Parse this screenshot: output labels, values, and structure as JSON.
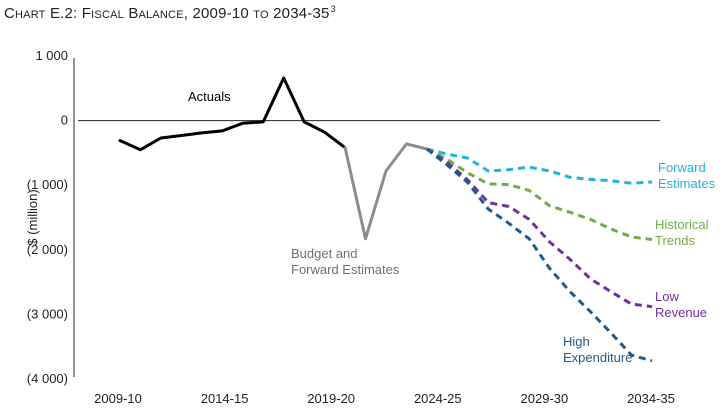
{
  "title": {
    "main": "Chart E.2: Fiscal Balance, 2009-10 to 2034-35",
    "footnote": "3"
  },
  "chart_data": {
    "type": "line",
    "title": "Chart E.2: Fiscal Balance, 2009-10 to 2034-35",
    "xlabel": "",
    "ylabel": "$ (million)",
    "x_tick_labels": [
      "2009-10",
      "2014-15",
      "2019-20",
      "2024-25",
      "2029-30",
      "2034-35"
    ],
    "y_ticks": [
      {
        "value": 1000,
        "label": "1 000"
      },
      {
        "value": 0,
        "label": "0"
      },
      {
        "value": -1000,
        "label": "(1 000)"
      },
      {
        "value": -2000,
        "label": "(2 000)"
      },
      {
        "value": -3000,
        "label": "(3 000)"
      },
      {
        "value": -4000,
        "label": "(4 000)"
      }
    ],
    "ylim": [
      -4000,
      1000
    ],
    "xlim": [
      2009,
      2035
    ],
    "grid": false,
    "zero_line": true,
    "series": [
      {
        "name": "Actuals",
        "label_lines": [
          "Actuals"
        ],
        "color": "#000000",
        "dash": "solid",
        "x": [
          2009,
          2010,
          2011,
          2012,
          2013,
          2014,
          2015,
          2016,
          2017,
          2018,
          2019,
          2020
        ],
        "values": [
          -310,
          -450,
          -270,
          -230,
          -190,
          -160,
          -40,
          -20,
          660,
          -20,
          -180,
          -420
        ]
      },
      {
        "name": "Budget and Forward Estimates",
        "label_lines": [
          "Budget and",
          "Forward Estimates"
        ],
        "color": "#8c8c8c",
        "dash": "solid",
        "x": [
          2020,
          2021,
          2022,
          2023,
          2024
        ],
        "values": [
          -420,
          -1830,
          -780,
          -360,
          -440
        ]
      },
      {
        "name": "Forward Estimates",
        "label_lines": [
          "Forward",
          "Estimates"
        ],
        "color": "#22b3dd",
        "dash": "dashed",
        "x": [
          2024,
          2025,
          2026,
          2027,
          2028,
          2029,
          2030,
          2031,
          2032,
          2033,
          2034,
          2035
        ],
        "values": [
          -440,
          -520,
          -580,
          -780,
          -760,
          -720,
          -780,
          -880,
          -910,
          -930,
          -970,
          -950
        ]
      },
      {
        "name": "Historical Trends",
        "label_lines": [
          "Historical",
          "Trends"
        ],
        "color": "#70ad47",
        "dash": "dashed",
        "x": [
          2024,
          2025,
          2026,
          2027,
          2028,
          2029,
          2030,
          2031,
          2032,
          2033,
          2034,
          2035
        ],
        "values": [
          -440,
          -600,
          -810,
          -980,
          -990,
          -1080,
          -1320,
          -1420,
          -1530,
          -1680,
          -1800,
          -1840
        ]
      },
      {
        "name": "Low Revenue",
        "label_lines": [
          "Low",
          "Revenue"
        ],
        "color": "#7030a0",
        "dash": "dashed",
        "x": [
          2024,
          2025,
          2026,
          2027,
          2028,
          2029,
          2030,
          2031,
          2032,
          2033,
          2034,
          2035
        ],
        "values": [
          -440,
          -650,
          -920,
          -1270,
          -1330,
          -1530,
          -1880,
          -2150,
          -2450,
          -2650,
          -2840,
          -2880
        ]
      },
      {
        "name": "High Expenditure",
        "label_lines": [
          "High",
          "Expenditure"
        ],
        "color": "#1f5c87",
        "dash": "dashed",
        "x": [
          2024,
          2025,
          2026,
          2027,
          2028,
          2029,
          2030,
          2031,
          2032,
          2033,
          2034,
          2035
        ],
        "values": [
          -440,
          -690,
          -960,
          -1370,
          -1590,
          -1830,
          -2290,
          -2650,
          -2960,
          -3290,
          -3630,
          -3720
        ]
      }
    ]
  }
}
